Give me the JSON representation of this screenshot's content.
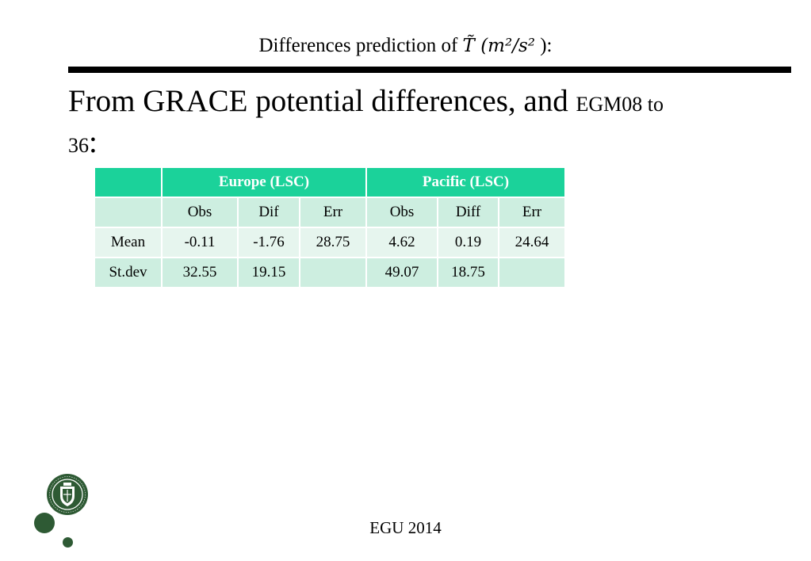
{
  "slide": {
    "title_text": "Differences prediction of",
    "title_math": "T̃ (m²/s²",
    "title_end": "):",
    "heading_main": "From GRACE potential differences, and",
    "heading_small": "EGM08 to",
    "heading_line2": "36",
    "heading_colon": ":",
    "footer": "EGU 2014"
  },
  "table": {
    "group_headers": [
      "",
      "Europe (LSC)",
      "Pacific (LSC)"
    ],
    "sub_headers": [
      "",
      "Obs",
      "Dif",
      "Err",
      "Obs",
      "Diff",
      "Err"
    ],
    "rows": [
      [
        "Mean",
        "-0.11",
        "-1.76",
        "28.75",
        "4.62",
        "0.19",
        "24.64"
      ],
      [
        "St.dev",
        "32.55",
        "19.15",
        "",
        "49.07",
        "18.75",
        ""
      ]
    ]
  },
  "colors": {
    "header_green": "#1bd29a",
    "row_light": "#e6f5ee",
    "row_mid": "#cdeee0",
    "logo_green": "#2e5a34"
  }
}
